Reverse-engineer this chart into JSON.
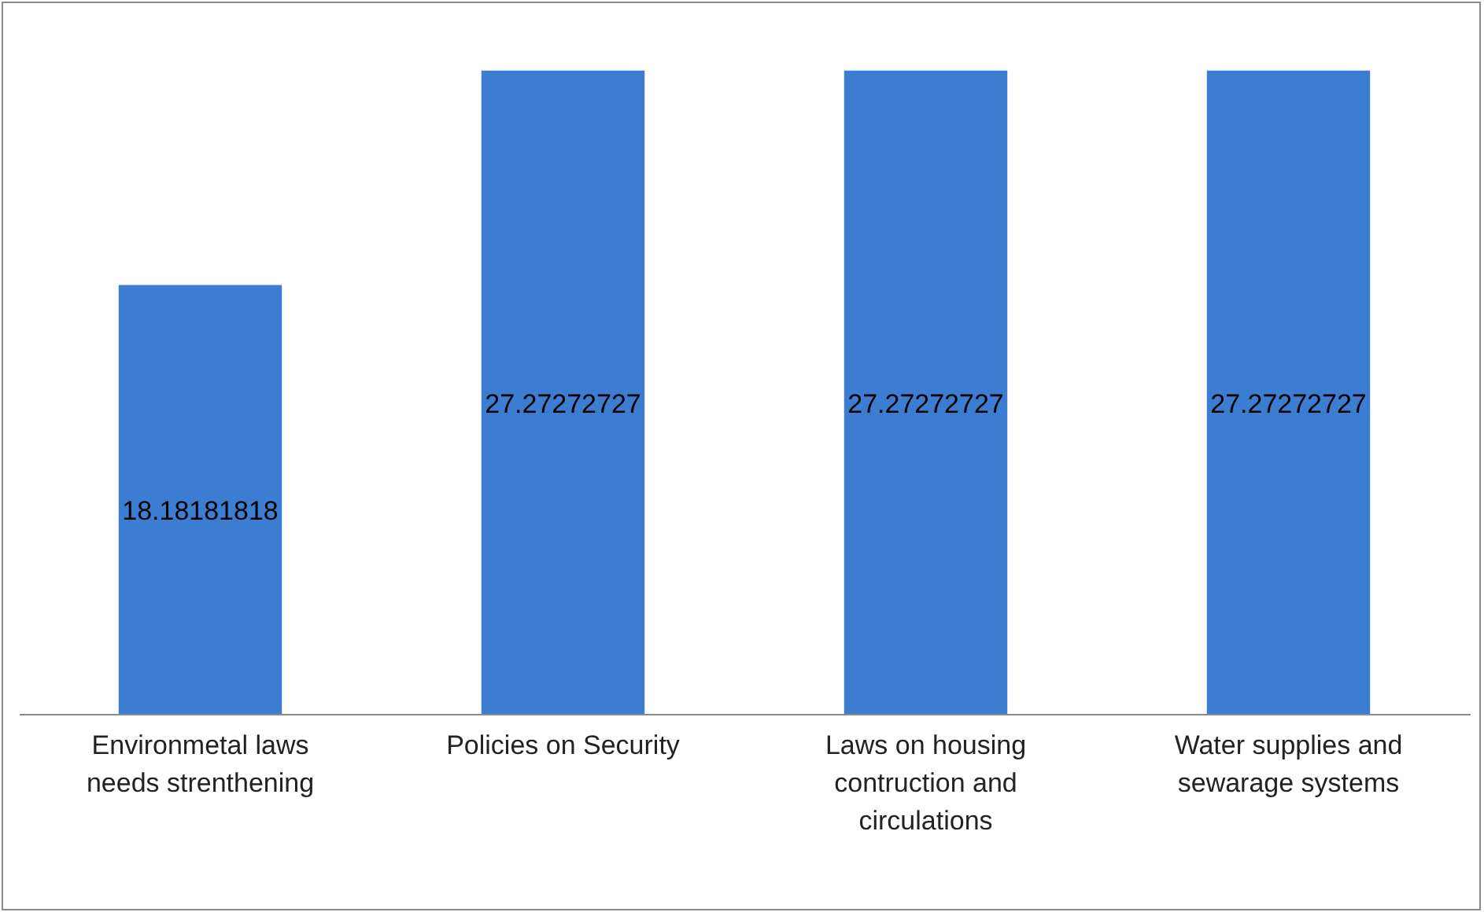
{
  "chart_data": {
    "type": "bar",
    "categories": [
      "Environmetal laws needs strenthening",
      "Policies on Security",
      "Laws on housing contruction and circulations",
      "Water supplies and sewarage systems"
    ],
    "values": [
      18.18181818,
      27.27272727,
      27.27272727,
      27.27272727
    ],
    "color": "#3b7dd0",
    "data_labels": true
  }
}
